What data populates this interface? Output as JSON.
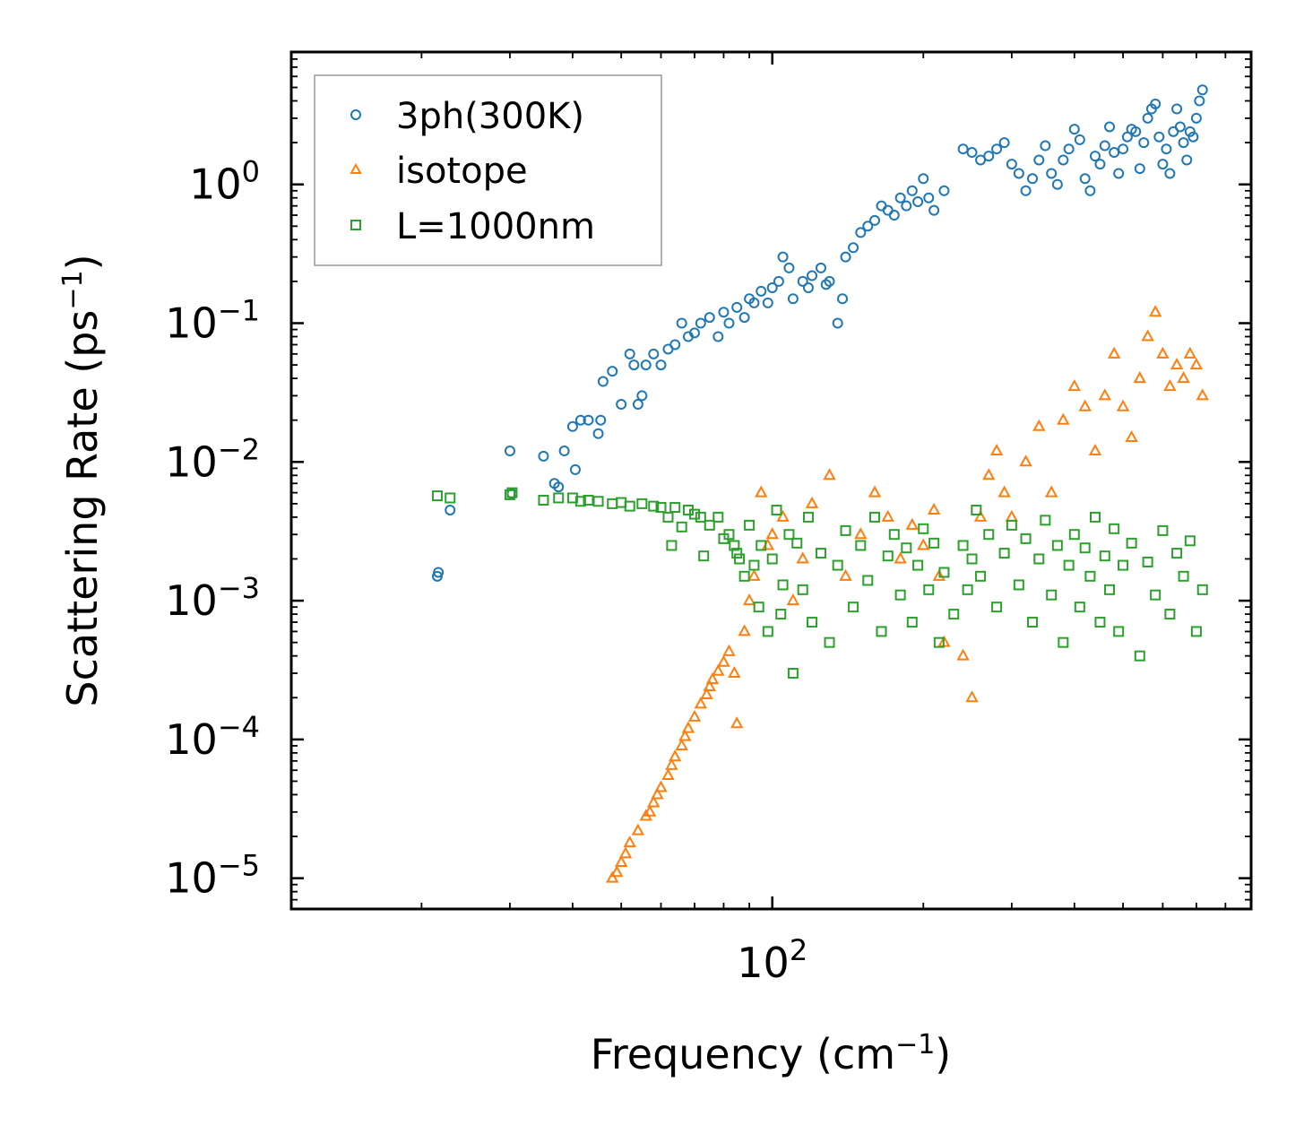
{
  "chart_data": {
    "type": "scatter",
    "xscale": "log",
    "yscale": "log",
    "xlim": [
      11,
      900
    ],
    "ylim": [
      6e-06,
      9
    ],
    "xlabel": "Frequency (cm",
    "xlabel_sup": "−1",
    "xlabel_end": ")",
    "ylabel": "Scattering Rate (ps",
    "ylabel_sup": "−1",
    "ylabel_end": ")",
    "x_ticks": [
      {
        "value": 100,
        "base": "10",
        "exp": "2"
      }
    ],
    "y_ticks": [
      {
        "value": 1,
        "base": "10",
        "exp": "0"
      },
      {
        "value": 0.1,
        "base": "10",
        "exp": "−1"
      },
      {
        "value": 0.01,
        "base": "10",
        "exp": "−2"
      },
      {
        "value": 0.001,
        "base": "10",
        "exp": "−3"
      },
      {
        "value": 0.0001,
        "base": "10",
        "exp": "−4"
      },
      {
        "value": 1e-05,
        "base": "10",
        "exp": "−5"
      }
    ],
    "grid": false,
    "legend_position": "top-left",
    "series": [
      {
        "name": "3ph(300K)",
        "marker": "circle",
        "color": "#1f77b4",
        "x": [
          21.5,
          21.6,
          22.8,
          30,
          30.3,
          35,
          36.8,
          37.5,
          38.5,
          40,
          40.5,
          41.5,
          43,
          45,
          45.5,
          46,
          48,
          50,
          52,
          53,
          54,
          55,
          56,
          58,
          60,
          62,
          64,
          66,
          68,
          70,
          72,
          75,
          78,
          80,
          82,
          85,
          88,
          90,
          92,
          95,
          98,
          100,
          103,
          105,
          108,
          110,
          115,
          118,
          120,
          125,
          128,
          130,
          135,
          138,
          140,
          145,
          150,
          155,
          160,
          165,
          170,
          175,
          180,
          185,
          190,
          195,
          200,
          205,
          210,
          220,
          240,
          250,
          260,
          270,
          280,
          290,
          300,
          310,
          320,
          330,
          340,
          350,
          360,
          370,
          380,
          390,
          400,
          410,
          420,
          430,
          440,
          450,
          460,
          470,
          480,
          490,
          500,
          510,
          520,
          530,
          540,
          550,
          560,
          570,
          580,
          590,
          600,
          610,
          620,
          630,
          640,
          650,
          660,
          670,
          680,
          690,
          700,
          710,
          720
        ],
        "y": [
          0.0015,
          0.0016,
          0.0045,
          0.012,
          0.0059,
          0.011,
          0.007,
          0.0066,
          0.012,
          0.018,
          0.0088,
          0.02,
          0.02,
          0.016,
          0.02,
          0.038,
          0.045,
          0.026,
          0.06,
          0.05,
          0.026,
          0.03,
          0.05,
          0.06,
          0.05,
          0.065,
          0.07,
          0.1,
          0.08,
          0.085,
          0.1,
          0.11,
          0.08,
          0.12,
          0.1,
          0.13,
          0.11,
          0.15,
          0.14,
          0.17,
          0.14,
          0.18,
          0.2,
          0.3,
          0.25,
          0.15,
          0.2,
          0.18,
          0.22,
          0.25,
          0.19,
          0.2,
          0.1,
          0.15,
          0.3,
          0.35,
          0.45,
          0.5,
          0.55,
          0.7,
          0.65,
          0.6,
          0.8,
          0.7,
          0.9,
          0.75,
          1.1,
          0.8,
          0.65,
          0.9,
          1.8,
          1.7,
          1.5,
          1.6,
          1.8,
          2.0,
          1.4,
          1.2,
          0.9,
          1.1,
          1.5,
          1.9,
          1.2,
          1.0,
          1.5,
          1.8,
          2.5,
          2.1,
          1.1,
          0.9,
          1.6,
          1.4,
          1.9,
          2.6,
          1.7,
          1.2,
          1.8,
          2.2,
          2.5,
          2.4,
          1.3,
          2.0,
          3.0,
          3.5,
          3.8,
          2.2,
          1.4,
          1.8,
          1.2,
          2.4,
          3.5,
          2.6,
          2.0,
          1.5,
          2.4,
          2.2,
          3.0,
          4.0,
          4.8
        ]
      },
      {
        "name": "isotope",
        "marker": "triangle",
        "color": "#ff7f0e",
        "x": [
          48,
          49,
          50,
          51,
          52,
          54,
          56,
          57,
          58,
          59,
          60,
          62,
          63,
          64,
          66,
          67,
          68,
          70,
          72,
          74,
          75,
          76,
          78,
          80,
          82,
          84,
          85,
          88,
          90,
          92,
          95,
          98,
          100,
          105,
          110,
          115,
          120,
          130,
          140,
          150,
          160,
          170,
          180,
          190,
          200,
          210,
          215,
          220,
          240,
          250,
          260,
          270,
          280,
          290,
          300,
          320,
          340,
          360,
          380,
          400,
          420,
          440,
          460,
          480,
          500,
          520,
          540,
          560,
          580,
          600,
          620,
          640,
          660,
          680,
          700,
          720
        ],
        "y": [
          1e-05,
          1.1e-05,
          1.3e-05,
          1.5e-05,
          1.8e-05,
          2.2e-05,
          2.8e-05,
          3e-05,
          3.5e-05,
          4e-05,
          4.5e-05,
          5.5e-05,
          6.5e-05,
          7.5e-05,
          9e-05,
          0.000105,
          0.00012,
          0.000145,
          0.00018,
          0.00021,
          0.00024,
          0.00027,
          0.00031,
          0.00036,
          0.00043,
          0.0003,
          0.00013,
          0.0006,
          0.001,
          0.0015,
          0.006,
          0.0025,
          0.003,
          0.004,
          0.001,
          0.002,
          0.005,
          0.008,
          0.0015,
          0.003,
          0.006,
          0.004,
          0.002,
          0.0035,
          0.0025,
          0.0045,
          0.0015,
          0.0005,
          0.0004,
          0.0002,
          0.004,
          0.008,
          0.012,
          0.006,
          0.004,
          0.01,
          0.018,
          0.006,
          0.02,
          0.035,
          0.025,
          0.012,
          0.03,
          0.06,
          0.025,
          0.015,
          0.04,
          0.08,
          0.12,
          0.06,
          0.035,
          0.05,
          0.04,
          0.06,
          0.05,
          0.03
        ]
      },
      {
        "name": "L=1000nm",
        "marker": "square",
        "color": "#2ca02c",
        "x": [
          21.5,
          22.8,
          30,
          30.3,
          35,
          37.5,
          40,
          41.5,
          43,
          45,
          48,
          50,
          52,
          55,
          58,
          60,
          62,
          63,
          64,
          66,
          68,
          70,
          72,
          73,
          75,
          78,
          80,
          82,
          84,
          85,
          86,
          88,
          90,
          92,
          94,
          95,
          98,
          100,
          102,
          104,
          105,
          108,
          110,
          112,
          115,
          118,
          120,
          125,
          130,
          135,
          140,
          145,
          150,
          155,
          160,
          165,
          170,
          175,
          180,
          185,
          190,
          195,
          200,
          205,
          210,
          215,
          220,
          230,
          240,
          245,
          250,
          255,
          260,
          270,
          280,
          290,
          300,
          310,
          320,
          330,
          340,
          350,
          360,
          370,
          380,
          390,
          400,
          410,
          420,
          430,
          440,
          450,
          460,
          470,
          480,
          490,
          500,
          520,
          540,
          560,
          580,
          600,
          620,
          640,
          660,
          680,
          700,
          720
        ],
        "y": [
          0.0057,
          0.0055,
          0.0058,
          0.006,
          0.0053,
          0.0055,
          0.0055,
          0.0052,
          0.0053,
          0.0052,
          0.005,
          0.0051,
          0.0048,
          0.005,
          0.0048,
          0.0047,
          0.004,
          0.0025,
          0.0047,
          0.0034,
          0.0045,
          0.0042,
          0.004,
          0.0021,
          0.0035,
          0.004,
          0.0028,
          0.003,
          0.0025,
          0.0022,
          0.002,
          0.0015,
          0.0035,
          0.0018,
          0.0009,
          0.0025,
          0.0006,
          0.002,
          0.0045,
          0.0008,
          0.0013,
          0.003,
          0.0003,
          0.0026,
          0.0012,
          0.004,
          0.0007,
          0.0022,
          0.0005,
          0.0018,
          0.0032,
          0.0009,
          0.0025,
          0.0014,
          0.004,
          0.0006,
          0.0021,
          0.003,
          0.0011,
          0.0024,
          0.0007,
          0.0018,
          0.0033,
          0.0012,
          0.0026,
          0.0005,
          0.0016,
          0.0008,
          0.0025,
          0.0012,
          0.002,
          0.0045,
          0.0015,
          0.003,
          0.0009,
          0.0022,
          0.0035,
          0.0013,
          0.0028,
          0.0007,
          0.002,
          0.0038,
          0.0011,
          0.0025,
          0.0005,
          0.0018,
          0.003,
          0.0009,
          0.0024,
          0.0015,
          0.004,
          0.0007,
          0.0021,
          0.0012,
          0.0033,
          0.0006,
          0.0018,
          0.0026,
          0.0004,
          0.0019,
          0.0011,
          0.0032,
          0.0008,
          0.0022,
          0.0015,
          0.0027,
          0.0006,
          0.0012
        ]
      }
    ]
  }
}
